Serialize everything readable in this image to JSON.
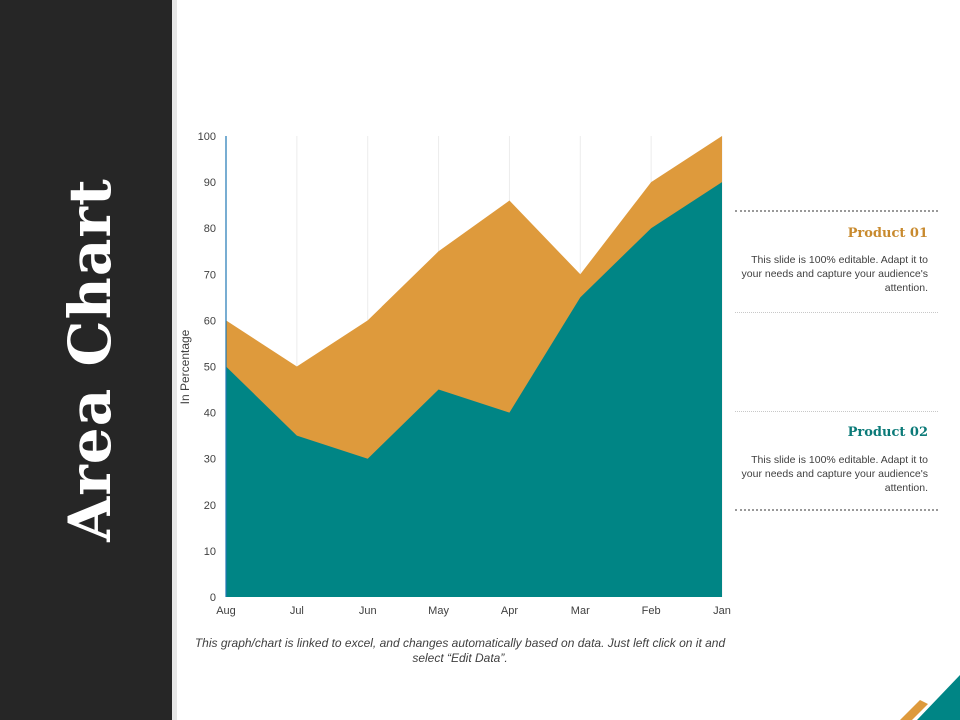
{
  "slide": {
    "title": "Area Chart",
    "footnote": "This graph/chart is linked to excel, and changes automatically based on data. Just left click on it and select “Edit Data”.",
    "colors": {
      "sidebar": "#262626",
      "accent_orange": "#de9a3c",
      "accent_teal": "#008585"
    }
  },
  "legend": [
    {
      "title": "Product 01",
      "description": "This slide is 100% editable. Adapt it to your needs and capture your audience's attention.",
      "color": "#c88a2e"
    },
    {
      "title": "Product 02",
      "description": "This slide is 100% editable. Adapt it to your needs and capture your audience's attention.",
      "color": "#0b7a78"
    }
  ],
  "chart_data": {
    "type": "area",
    "categories": [
      "Aug",
      "Jul",
      "Jun",
      "May",
      "Apr",
      "Mar",
      "Feb",
      "Jan"
    ],
    "series": [
      {
        "name": "Product 01",
        "values": [
          60,
          50,
          60,
          75,
          86,
          70,
          90,
          100
        ],
        "color": "#de9a3c"
      },
      {
        "name": "Product 02",
        "values": [
          50,
          35,
          30,
          45,
          40,
          65,
          80,
          90
        ],
        "color": "#008585"
      }
    ],
    "ylabel": "In Percentage",
    "ylim": [
      0,
      100
    ],
    "yticks": [
      0,
      10,
      20,
      30,
      40,
      50,
      60,
      70,
      80,
      90,
      100
    ],
    "grid": "vertical"
  }
}
